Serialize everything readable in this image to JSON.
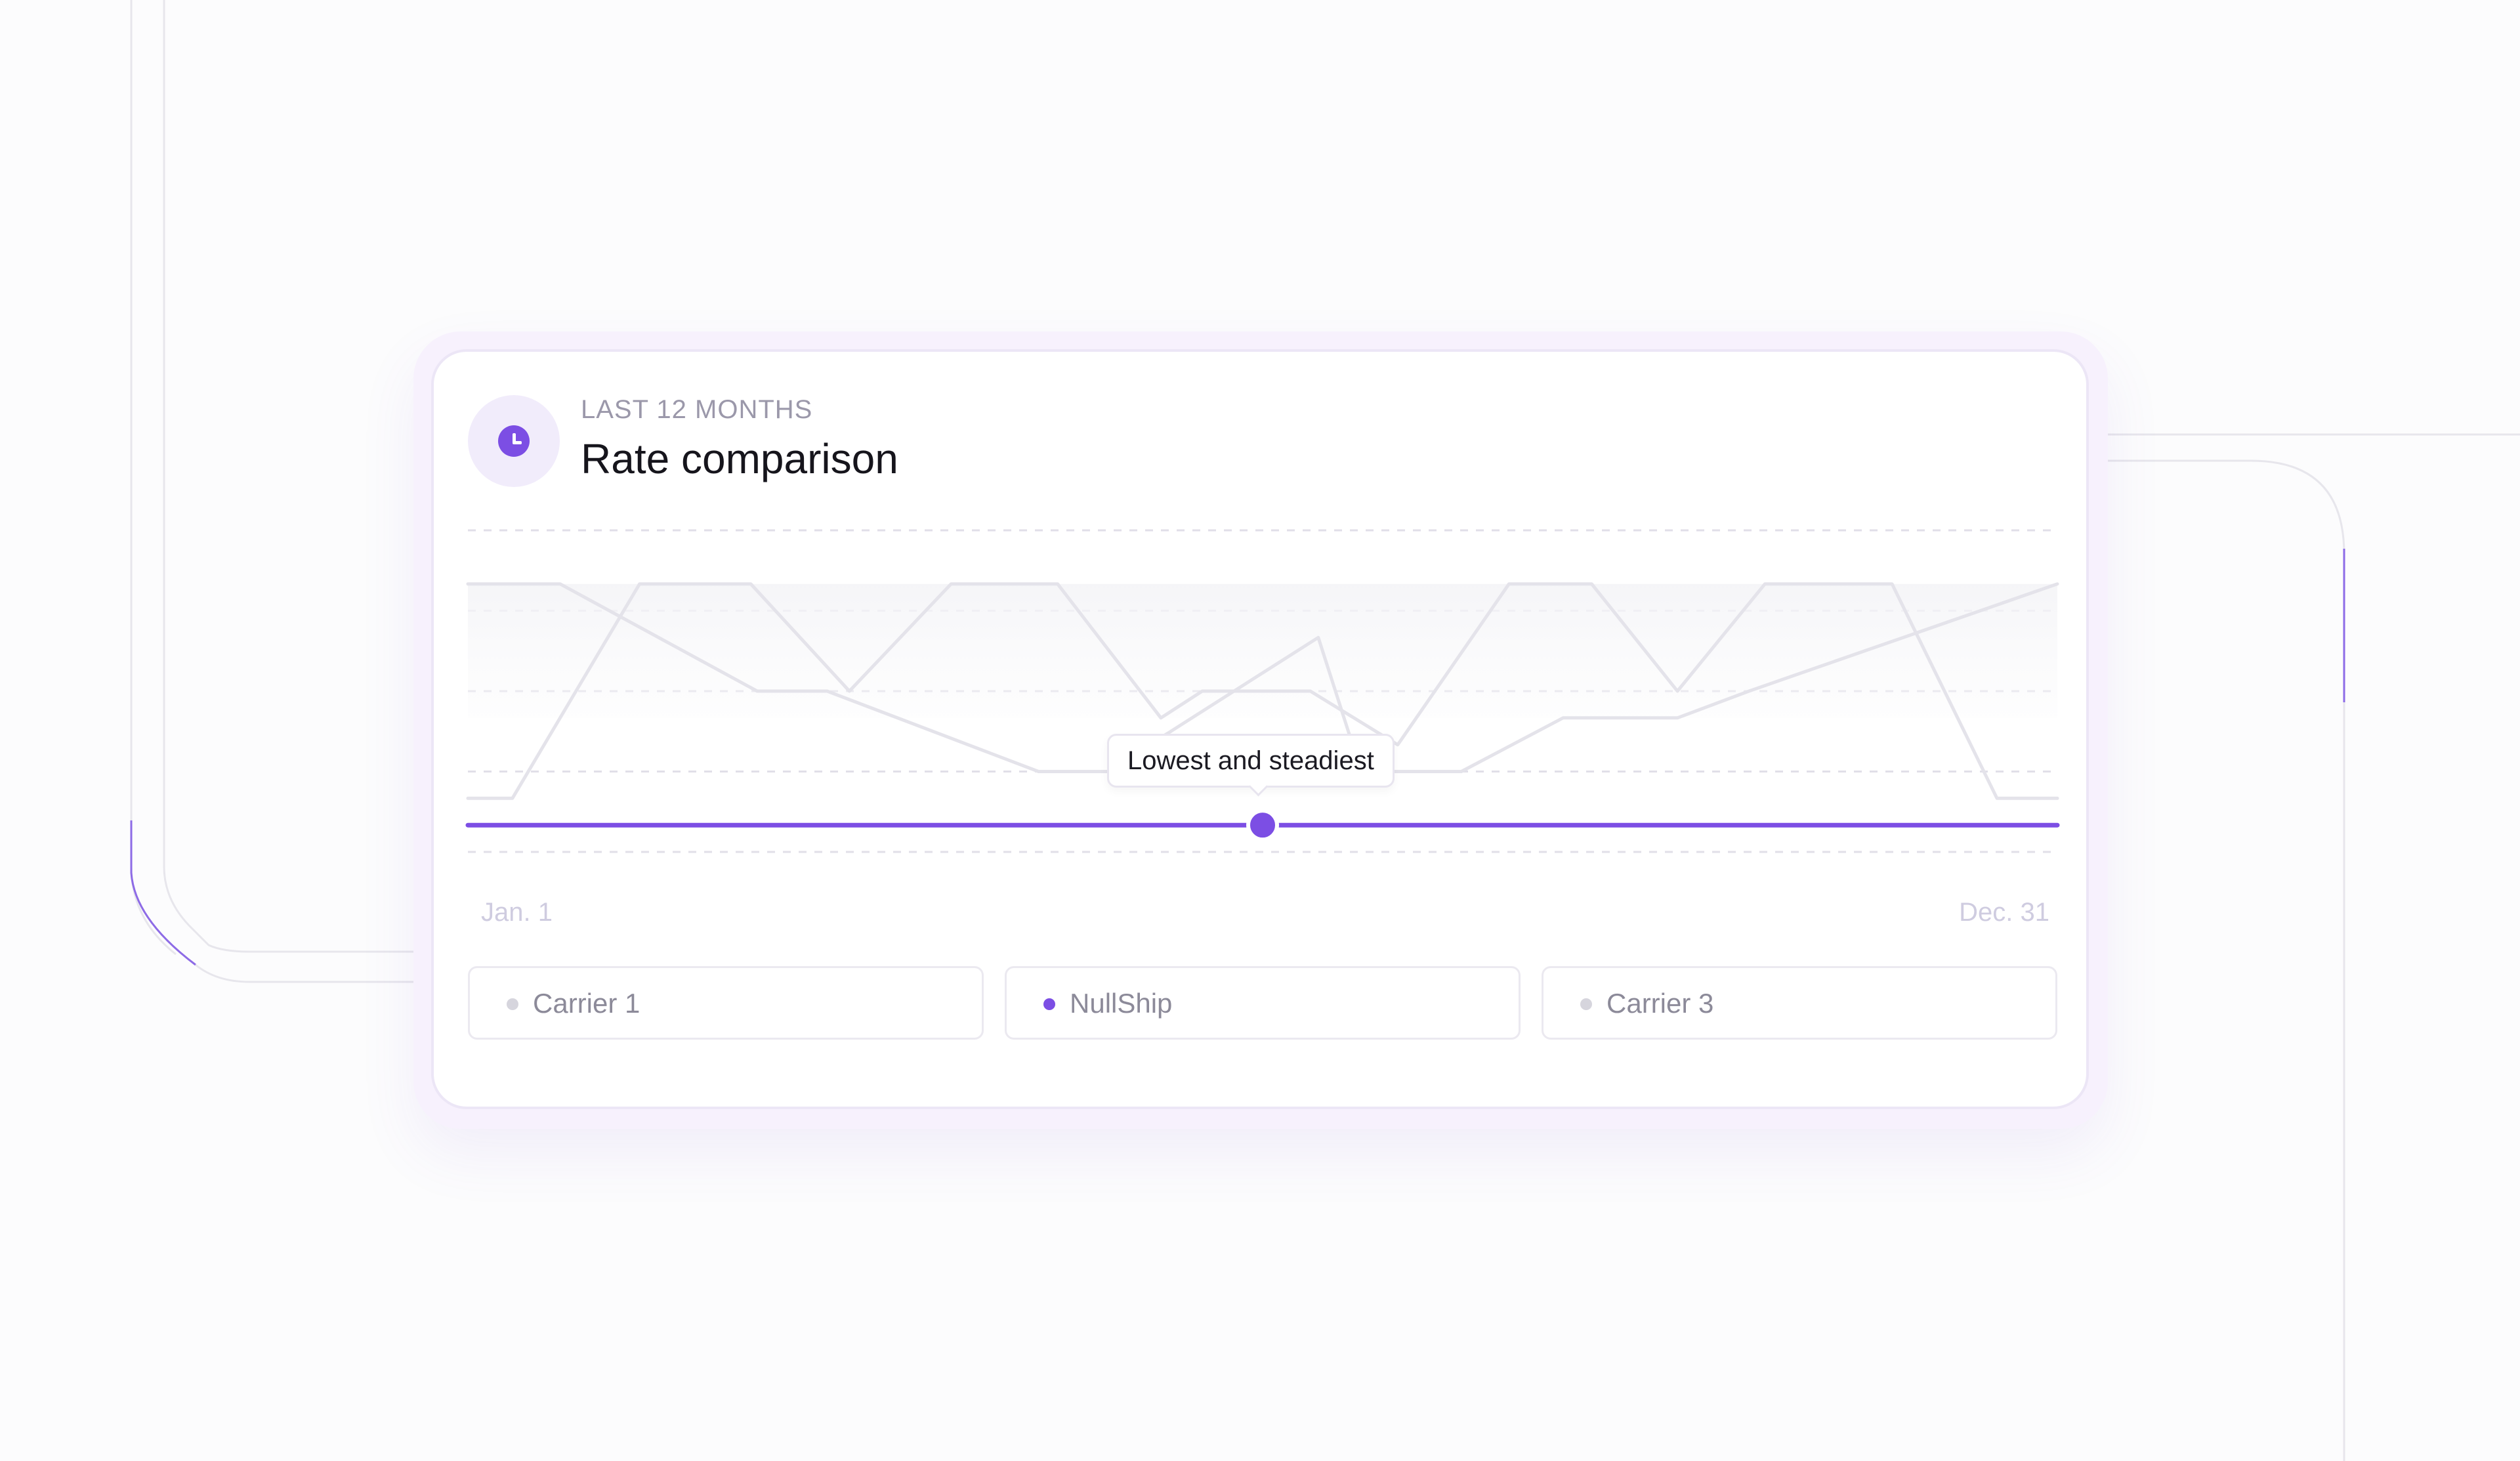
{
  "colors": {
    "accent": "#7c4ee4",
    "muted_line": "#e4e3ea",
    "grid": "#e1dfe8",
    "legend_muted": "#d6d5dd"
  },
  "header": {
    "icon": "clock-icon",
    "eyebrow": "LAST 12 MONTHS",
    "title": "Rate comparison"
  },
  "tooltip": {
    "text": "Lowest and steadiest"
  },
  "legend": [
    {
      "label": "Carrier 1",
      "color": "#d6d5dd"
    },
    {
      "label": "NullShip",
      "color": "#7c4ee4"
    },
    {
      "label": "Carrier 3",
      "color": "#d6d5dd"
    }
  ],
  "chart_data": {
    "type": "line",
    "title": "Rate comparison",
    "subtitle": "LAST 12 MONTHS",
    "x_tick_labels": [
      "Jan. 1",
      "Dec. 31"
    ],
    "xlim": [
      0,
      100
    ],
    "ylim": [
      0,
      6
    ],
    "grid": true,
    "legend_placement": "bottom",
    "highlight_series": "NullShip",
    "series": [
      {
        "name": "Carrier 1",
        "color": "#e4e3ea",
        "x": [
          0,
          2.8,
          10.8,
          17.8,
          24.0,
          30.4,
          37.1,
          43.6,
          46.2,
          53.0,
          58.5,
          65.5,
          70.7,
          76.1,
          81.6,
          89.6,
          96.2,
          100
        ],
        "y": [
          1.0,
          1.0,
          5.0,
          5.0,
          3.0,
          5.0,
          5.0,
          2.5,
          3.0,
          3.0,
          2.0,
          5.0,
          5.0,
          3.0,
          5.0,
          5.0,
          1.0,
          1.0
        ]
      },
      {
        "name": "Carrier 3",
        "color": "#e4e3ea",
        "x": [
          0,
          5.8,
          18.2,
          22.6,
          35.9,
          40.4,
          42.9,
          53.5,
          56.2,
          62.5,
          68.9,
          76.1,
          80.6,
          100
        ],
        "y": [
          5.0,
          5.0,
          3.0,
          3.0,
          1.5,
          1.5,
          2.0,
          4.0,
          1.5,
          1.5,
          2.5,
          2.5,
          3.0,
          5.0
        ]
      },
      {
        "name": "NullShip",
        "color": "#7c4ee4",
        "x": [
          0,
          100
        ],
        "y": [
          0.5,
          0.5
        ]
      }
    ]
  }
}
